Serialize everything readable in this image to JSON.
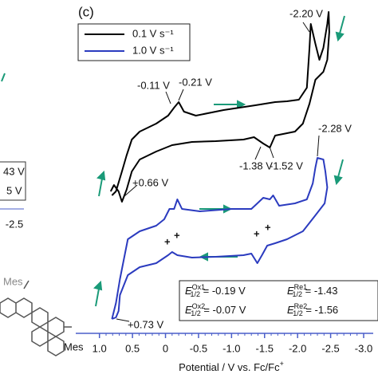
{
  "chart_data": {
    "type": "line",
    "panel": "(c)",
    "xlabel": "Potential / V vs. Fc/Fc",
    "xlabel_sup": "+",
    "xlim": [
      1.25,
      -3.0
    ],
    "ylim": [
      0,
      418
    ],
    "xticks": [
      {
        "value": 1,
        "label": "1.0"
      },
      0.5,
      0,
      -0.5,
      {
        "value": -1,
        "label": "-1.0"
      },
      -1.5,
      {
        "value": -2,
        "label": "-2.0"
      },
      -2.5,
      {
        "value": -3,
        "label": "-3.0"
      }
    ],
    "legend": "top-left",
    "series": [
      {
        "name": "0.1 V s⁻¹",
        "color": "#000000",
        "x": [
          0.81,
          0.75,
          0.66,
          0.59,
          0.51,
          0.39,
          0.14,
          -0.04,
          -0.13,
          -0.2,
          -0.28,
          -0.46,
          -0.88,
          -1.36,
          -1.66,
          -1.84,
          -2.02,
          -2.14,
          -2.18,
          -2.2,
          -2.27,
          -2.33,
          -2.39,
          -2.45,
          -2.47,
          -2.48,
          -2.45,
          -2.39,
          -2.27,
          -2.18,
          -2.08,
          -1.96,
          -1.78,
          -1.66,
          -1.58,
          -1.48,
          -1.34,
          -1.18,
          -0.76,
          -0.4,
          -0.1,
          0.14,
          0.39,
          0.51,
          0.59,
          0.66,
          0.71,
          0.78,
          0.83
        ],
        "values": [
          173,
          178,
          203,
          223,
          243,
          253,
          263,
          273,
          283,
          290,
          278,
          273,
          280,
          286,
          290,
          291,
          293,
          308,
          358,
          388,
          363,
          343,
          358,
          388,
          403,
          378,
          343,
          328,
          318,
          288,
          263,
          253,
          250,
          248,
          233,
          238,
          246,
          243,
          241,
          240,
          236,
          228,
          218,
          203,
          180,
          165,
          178,
          186,
          178
        ]
      },
      {
        "name": "1.0 V s⁻¹",
        "color": "#2b3bbf",
        "x": [
          0.81,
          0.75,
          0.69,
          0.57,
          0.39,
          0.14,
          0.02,
          -0.06,
          -0.13,
          -0.18,
          -0.25,
          -0.52,
          -1.0,
          -1.3,
          -1.39,
          -1.48,
          -1.58,
          -1.63,
          -1.72,
          -1.96,
          -2.14,
          -2.23,
          -2.27,
          -2.3,
          -2.39,
          -2.42,
          -2.45,
          -2.41,
          -2.27,
          -2.08,
          -1.84,
          -1.66,
          -1.54,
          -1.46,
          -1.39,
          -1.3,
          -1.18,
          -0.76,
          -0.4,
          -0.18,
          -0.1,
          -0.04,
          0.14,
          0.39,
          0.57,
          0.69,
          0.71,
          0.75,
          0.81
        ],
        "values": [
          18,
          38,
          68,
          118,
          128,
          135,
          143,
          156,
          156,
          168,
          156,
          153,
          156,
          156,
          163,
          170,
          168,
          173,
          160,
          163,
          168,
          188,
          208,
          220,
          218,
          203,
          183,
          163,
          148,
          128,
          118,
          113,
          110,
          98,
          88,
          100,
          98,
          96,
          95,
          98,
          102,
          98,
          88,
          83,
          73,
          48,
          28,
          20,
          18
        ]
      }
    ],
    "annotations": [
      "-2.20 V",
      "-0.11 V",
      "-0.21 V",
      "-1.38 V",
      "-1.52 V",
      "+0.66 V",
      "-2.28 V",
      "+0.73 V"
    ],
    "half_potentials": [
      {
        "symbol": "E",
        "sup": "Ox1",
        "sub": "1/2",
        "text": " = -0.19 V"
      },
      {
        "symbol": "E",
        "sup": "Re1",
        "sub": "1/2",
        "text": " = -1.43"
      },
      {
        "symbol": "E",
        "sup": "Ox2",
        "sub": "1/2",
        "text": " = -0.07 V"
      },
      {
        "symbol": "E",
        "sup": "Re2",
        "sub": "1/2",
        "text": " = -1.56"
      }
    ],
    "clipped_texts": [
      "43 V",
      "5 V",
      "-2.5",
      "Mes",
      "Mes"
    ]
  }
}
